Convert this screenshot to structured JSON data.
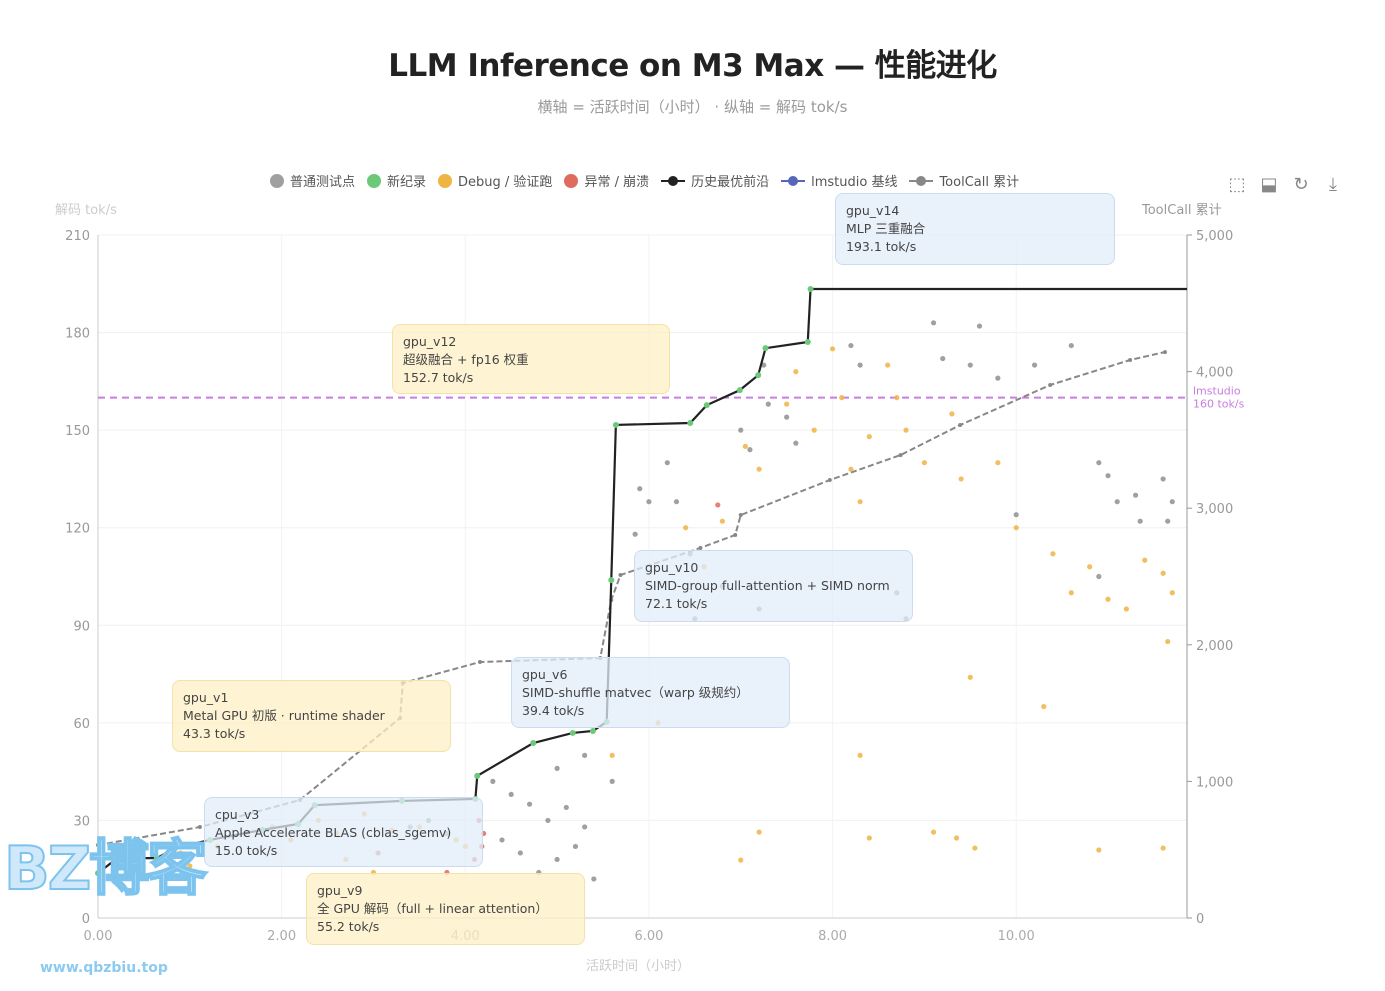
{
  "chart_data": {
    "type": "scatter",
    "title": "LLM Inference on M3 Max — 性能进化",
    "subtitle": "横轴 = 活跃时间（小时） · 纵轴 = 解码 tok/s",
    "xlabel": "活跃时间（小时）",
    "ylabel": "解码 tok/s",
    "y2label": "ToolCall 累计",
    "xlim": [
      0,
      11.86
    ],
    "ylim": [
      0,
      210
    ],
    "y2lim": [
      0,
      5000
    ],
    "grid": true,
    "legend_position": "top",
    "x_ticks": [
      "0.00",
      "2.00",
      "4.00",
      "6.00",
      "8.00",
      "10.00"
    ],
    "x_tick_values": [
      0,
      2,
      4,
      6,
      8,
      10
    ],
    "y_ticks": [
      "0",
      "30",
      "60",
      "90",
      "120",
      "150",
      "180",
      "210"
    ],
    "y_tick_values": [
      0,
      30,
      60,
      90,
      120,
      150,
      180,
      210
    ],
    "y2_ticks": [
      "0",
      "1,000",
      "2,000",
      "3,000",
      "4,000",
      "5,000"
    ],
    "y2_tick_values": [
      0,
      1000,
      2000,
      3000,
      4000,
      5000
    ],
    "legend": [
      {
        "name": "普通测试点",
        "kind": "dot",
        "color": "#a0a0a0"
      },
      {
        "name": "新纪录",
        "kind": "dot",
        "color": "#6cc97a"
      },
      {
        "name": "Debug / 验证跑",
        "kind": "dot",
        "color": "#f0b443"
      },
      {
        "name": "异常 / 崩溃",
        "kind": "dot",
        "color": "#e06a5c"
      },
      {
        "name": "历史最优前沿",
        "kind": "line",
        "color": "#222222"
      },
      {
        "name": "lmstudio 基线",
        "kind": "line",
        "color": "#5566bb"
      },
      {
        "name": "ToolCall 累计",
        "kind": "line",
        "color": "#888888"
      }
    ],
    "baseline": {
      "value": 160,
      "label_line1": "lmstudio",
      "label_line2": "160 tok/s",
      "color": "#c77ee0"
    },
    "series": [
      {
        "name": "普通测试点",
        "color": "#8f8f8f",
        "points": [
          [
            4.3,
            42
          ],
          [
            4.5,
            38
          ],
          [
            4.7,
            35
          ],
          [
            4.9,
            30
          ],
          [
            5.1,
            34
          ],
          [
            5.3,
            28
          ],
          [
            4.4,
            24
          ],
          [
            4.6,
            20
          ],
          [
            4.8,
            14
          ],
          [
            5.0,
            18
          ],
          [
            5.2,
            22
          ],
          [
            5.4,
            12
          ],
          [
            3.6,
            30
          ],
          [
            3.8,
            26
          ],
          [
            3.4,
            28
          ],
          [
            5.0,
            46
          ],
          [
            5.3,
            50
          ],
          [
            5.6,
            42
          ],
          [
            5.9,
            132
          ],
          [
            6.0,
            128
          ],
          [
            5.85,
            118
          ],
          [
            6.2,
            140
          ],
          [
            6.3,
            128
          ],
          [
            6.45,
            112
          ],
          [
            6.5,
            92
          ],
          [
            6.8,
            102
          ],
          [
            7.0,
            150
          ],
          [
            7.1,
            144
          ],
          [
            7.25,
            170
          ],
          [
            7.3,
            158
          ],
          [
            7.5,
            154
          ],
          [
            7.6,
            146
          ],
          [
            8.2,
            176
          ],
          [
            8.3,
            170
          ],
          [
            9.1,
            183
          ],
          [
            9.2,
            172
          ],
          [
            9.5,
            170
          ],
          [
            9.6,
            182
          ],
          [
            9.8,
            166
          ],
          [
            10.2,
            170
          ],
          [
            10.6,
            176
          ],
          [
            10.9,
            140
          ],
          [
            11.0,
            136
          ],
          [
            11.1,
            128
          ],
          [
            11.3,
            130
          ],
          [
            11.35,
            122
          ],
          [
            11.6,
            135
          ],
          [
            11.7,
            128
          ],
          [
            11.65,
            122
          ],
          [
            10.9,
            105
          ],
          [
            8.7,
            100
          ],
          [
            8.8,
            92
          ],
          [
            7.2,
            95
          ],
          [
            10.0,
            124
          ]
        ]
      },
      {
        "name": "Debug / 验证跑",
        "color": "#f0b443",
        "points": [
          [
            0.9,
            20
          ],
          [
            1.0,
            16
          ],
          [
            1.3,
            22
          ],
          [
            1.6,
            26
          ],
          [
            1.9,
            28
          ],
          [
            2.1,
            24
          ],
          [
            2.4,
            30
          ],
          [
            2.6,
            26
          ],
          [
            2.9,
            32
          ],
          [
            3.2,
            27
          ],
          [
            3.5,
            28
          ],
          [
            3.9,
            24
          ],
          [
            4.0,
            22
          ],
          [
            2.7,
            18
          ],
          [
            3.0,
            14
          ],
          [
            6.4,
            120
          ],
          [
            6.6,
            108
          ],
          [
            6.8,
            122
          ],
          [
            7.05,
            145
          ],
          [
            7.2,
            138
          ],
          [
            7.5,
            158
          ],
          [
            7.6,
            168
          ],
          [
            7.8,
            150
          ],
          [
            8.0,
            175
          ],
          [
            8.1,
            160
          ],
          [
            8.2,
            138
          ],
          [
            8.3,
            128
          ],
          [
            8.4,
            148
          ],
          [
            8.6,
            170
          ],
          [
            8.7,
            160
          ],
          [
            8.8,
            150
          ],
          [
            9.0,
            140
          ],
          [
            9.3,
            155
          ],
          [
            9.4,
            135
          ],
          [
            9.8,
            140
          ],
          [
            10.0,
            120
          ],
          [
            10.4,
            112
          ],
          [
            10.6,
            100
          ],
          [
            10.8,
            108
          ],
          [
            11.0,
            98
          ],
          [
            11.2,
            95
          ],
          [
            11.4,
            110
          ],
          [
            11.6,
            106
          ],
          [
            11.7,
            100
          ],
          [
            11.65,
            85
          ],
          [
            7.0,
            17.8
          ],
          [
            7.2,
            26.4
          ],
          [
            8.4,
            24.6
          ],
          [
            9.1,
            26.4
          ],
          [
            9.35,
            24.6
          ],
          [
            9.55,
            21.5
          ],
          [
            10.9,
            20.9
          ],
          [
            11.6,
            21.5
          ],
          [
            9.5,
            74
          ],
          [
            10.3,
            65
          ],
          [
            8.3,
            50
          ],
          [
            6.1,
            60
          ],
          [
            5.6,
            50
          ]
        ]
      },
      {
        "name": "异常 / 崩溃",
        "color": "#e06a5c",
        "points": [
          [
            4.15,
            30
          ],
          [
            4.2,
            26
          ],
          [
            4.18,
            22
          ],
          [
            4.1,
            18
          ],
          [
            3.05,
            20
          ],
          [
            6.75,
            127
          ],
          [
            3.8,
            14
          ]
        ]
      },
      {
        "name": "历史最优前沿",
        "color": "#222222",
        "marker_color": "#6cc97a",
        "points": [
          [
            0,
            13.8
          ],
          [
            0.21,
            18.4
          ],
          [
            0.64,
            18.4
          ],
          [
            0.84,
            21.5
          ],
          [
            1.22,
            24.0
          ],
          [
            1.79,
            27.1
          ],
          [
            2.18,
            28.9
          ],
          [
            2.36,
            34.7
          ],
          [
            3.31,
            36.0
          ],
          [
            4.11,
            36.6
          ],
          [
            4.13,
            43.7
          ],
          [
            4.74,
            53.8
          ],
          [
            5.17,
            56.9
          ],
          [
            5.39,
            57.5
          ],
          [
            5.54,
            60.3
          ],
          [
            5.59,
            103.9
          ],
          [
            5.64,
            151.6
          ],
          [
            6.45,
            152.2
          ],
          [
            6.63,
            157.7
          ],
          [
            6.99,
            162.3
          ],
          [
            7.19,
            166.9
          ],
          [
            7.27,
            175.2
          ],
          [
            7.73,
            177.1
          ],
          [
            7.76,
            193.4
          ],
          [
            11.86,
            193.4
          ]
        ]
      },
      {
        "name": "ToolCall 累计",
        "axis": "right",
        "color": "#888888",
        "points": [
          [
            0,
            534
          ],
          [
            1.11,
            666
          ],
          [
            2.2,
            864
          ],
          [
            3.29,
            1464
          ],
          [
            3.32,
            1720
          ],
          [
            4.16,
            1874
          ],
          [
            5.47,
            1903
          ],
          [
            5.59,
            2328
          ],
          [
            5.69,
            2511
          ],
          [
            6.56,
            2709
          ],
          [
            6.94,
            2804
          ],
          [
            7.0,
            2950
          ],
          [
            7.97,
            3206
          ],
          [
            8.74,
            3389
          ],
          [
            9.39,
            3609
          ],
          [
            10.37,
            3902
          ],
          [
            11.24,
            4085
          ],
          [
            11.62,
            4143
          ]
        ]
      }
    ],
    "annotations": [
      {
        "name": "gpu_v14",
        "desc": "MLP 三重融合",
        "value": "193.1 tok/s",
        "style": "blue"
      },
      {
        "name": "gpu_v12",
        "desc": "超级融合 + fp16 权重",
        "value": "152.7 tok/s",
        "style": "yellow"
      },
      {
        "name": "gpu_v10",
        "desc": "SIMD-group full-attention + SIMD norm",
        "value": "72.1 tok/s",
        "style": "blue"
      },
      {
        "name": "gpu_v6",
        "desc": "SIMD-shuffle matvec（warp 级规约）",
        "value": "39.4 tok/s",
        "style": "blue"
      },
      {
        "name": "gpu_v1",
        "desc": "Metal GPU 初版 · runtime shader",
        "value": "43.3 tok/s",
        "style": "yellow"
      },
      {
        "name": "cpu_v3",
        "desc": "Apple Accelerate BLAS (cblas_sgemv)",
        "value": "15.0 tok/s",
        "style": "blue"
      },
      {
        "name": "gpu_v9",
        "desc": "全 GPU 解码（full + linear attention）",
        "value": "55.2 tok/s",
        "style": "yellow"
      }
    ]
  },
  "toolbox": {
    "icons": [
      "zoom-select-icon",
      "zoom-reset-icon",
      "restore-icon",
      "save-image-icon"
    ]
  },
  "watermark": {
    "logo": "BZ博客",
    "url": "www.qbzbiu.top"
  }
}
